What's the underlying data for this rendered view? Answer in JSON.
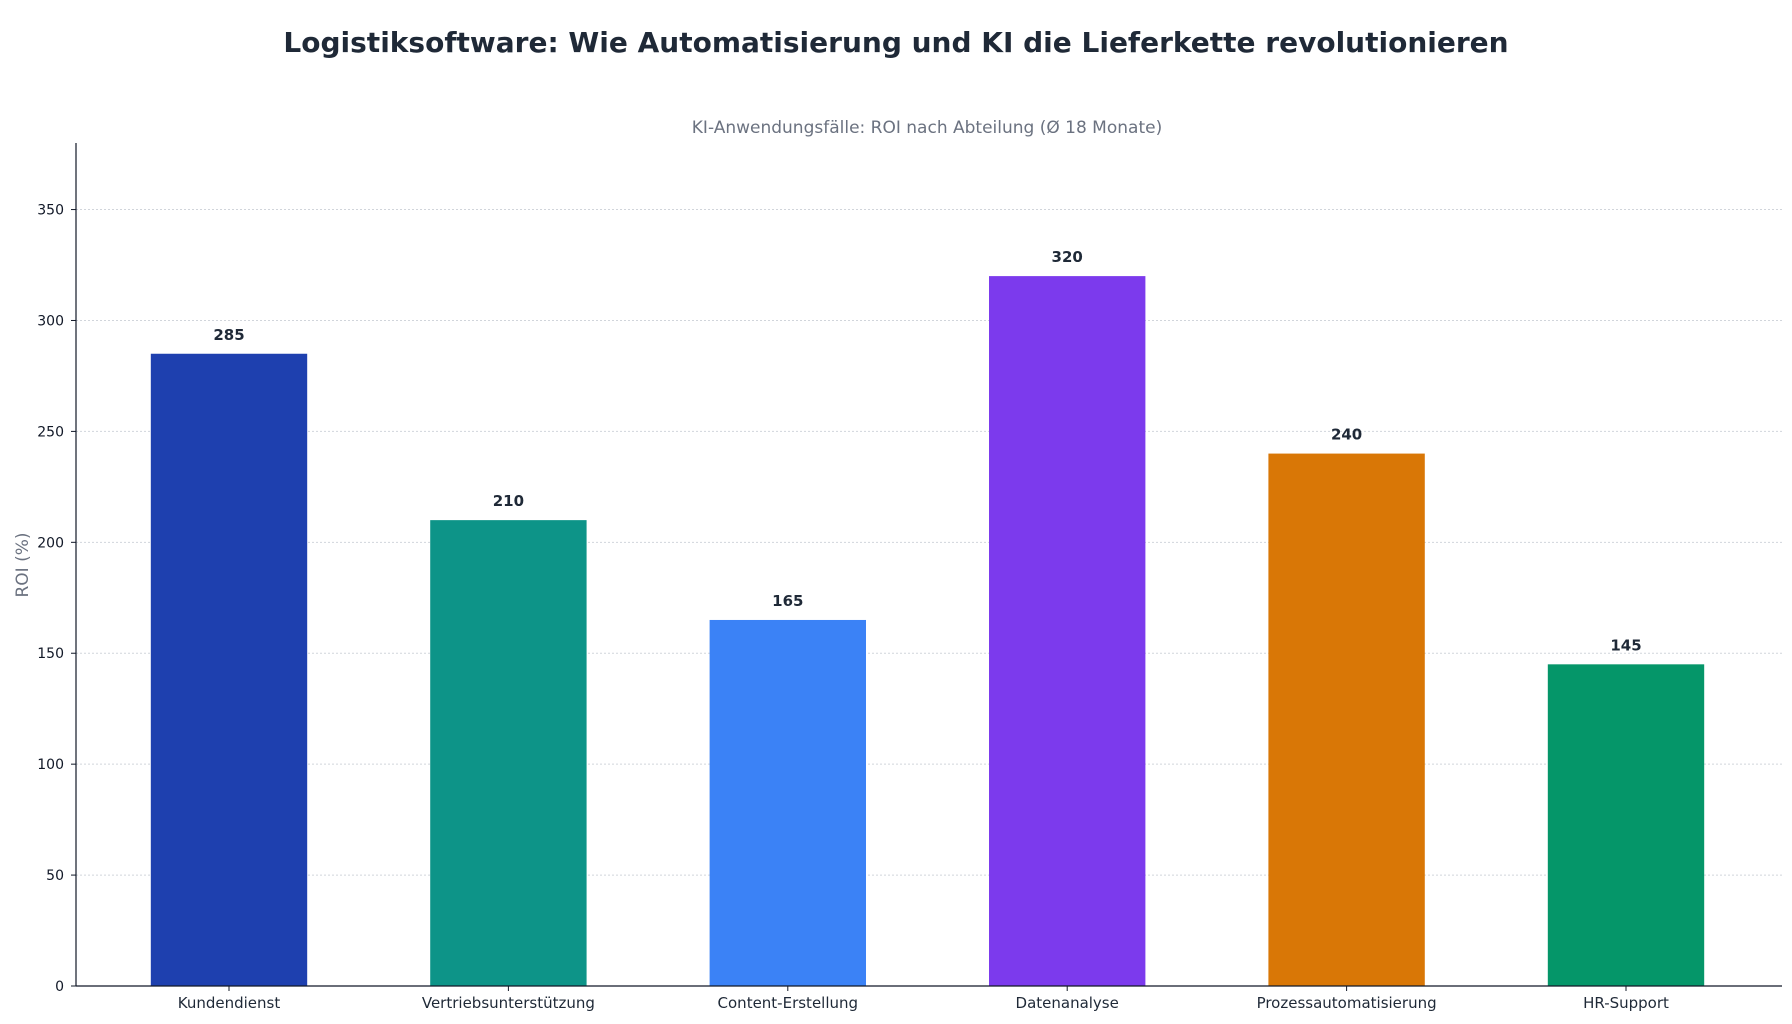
{
  "chart_data": {
    "type": "bar",
    "title": "Logistiksoftware: Wie Automatisierung und KI die Lieferkette revolutionieren",
    "subtitle": "KI-Anwendungsfälle: ROI nach Abteilung (Ø 18 Monate)",
    "xlabel": "",
    "ylabel": "ROI (%)",
    "ylim": [
      0,
      380
    ],
    "yticks": [
      0,
      50,
      100,
      150,
      200,
      250,
      300,
      350
    ],
    "grid": "horizontal",
    "categories": [
      "Kundendienst",
      "Vertriebsunterstützung",
      "Content-Erstellung",
      "Datenanalyse",
      "Prozessautomatisierung",
      "HR-Support"
    ],
    "values": [
      285,
      210,
      165,
      320,
      240,
      145
    ],
    "colors": [
      "#1e40af",
      "#0d9488",
      "#3b82f6",
      "#7c3aed",
      "#d97706",
      "#059669"
    ]
  }
}
